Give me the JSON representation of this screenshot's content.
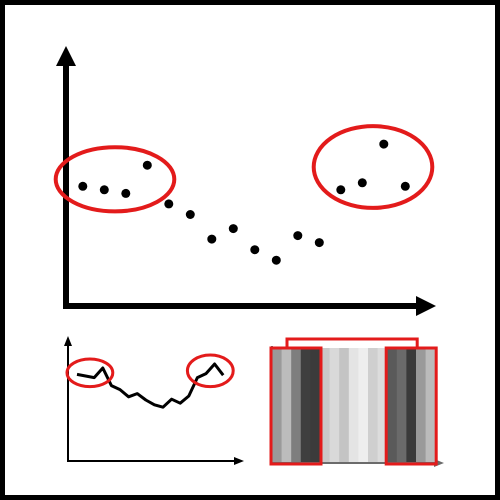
{
  "figure": {
    "border_color": "#000000",
    "axis_color": "#000000",
    "highlight_color": "#e31b1b",
    "axis_arrow_color_secondary": "#6b6b6b"
  },
  "scatter_panel": {
    "points": [
      {
        "x": 0.5,
        "y": 6.8
      },
      {
        "x": 1.5,
        "y": 6.6
      },
      {
        "x": 2.5,
        "y": 6.4
      },
      {
        "x": 3.5,
        "y": 8.0
      },
      {
        "x": 4.5,
        "y": 5.8
      },
      {
        "x": 5.5,
        "y": 5.2
      },
      {
        "x": 6.5,
        "y": 3.8
      },
      {
        "x": 7.5,
        "y": 4.4
      },
      {
        "x": 8.5,
        "y": 3.2
      },
      {
        "x": 9.5,
        "y": 2.6
      },
      {
        "x": 10.5,
        "y": 4.0
      },
      {
        "x": 11.5,
        "y": 3.6
      },
      {
        "x": 12.5,
        "y": 6.6
      },
      {
        "x": 13.5,
        "y": 7.0
      },
      {
        "x": 14.5,
        "y": 9.2
      },
      {
        "x": 15.5,
        "y": 6.8
      }
    ],
    "highlighted_groups": [
      {
        "points": [
          0,
          1,
          2,
          3
        ]
      },
      {
        "points": [
          12,
          13,
          14,
          15
        ]
      }
    ]
  },
  "line_panel": {
    "values": [
      3.2,
      3.0,
      2.8,
      4.0,
      1.8,
      1.3,
      0.4,
      0.8,
      0.0,
      -0.6,
      -0.9,
      0.1,
      -0.4,
      0.5,
      2.8,
      3.3,
      4.5,
      3.1
    ],
    "highlighted_ranges": [
      [
        0,
        3
      ],
      [
        14,
        17
      ]
    ]
  },
  "strip_panel": {
    "stripe_shades": [
      "#9a9a9a",
      "#bcbcbc",
      "#7e7e7e",
      "#3f3f3f",
      "#3b3b3b",
      "#c9c9c9",
      "#d9d9d9",
      "#c4c4c4",
      "#e4e4e4",
      "#eeeeee",
      "#cfcfcf",
      "#dcdcdc",
      "#5a5a5a",
      "#6a6a6a",
      "#3a3a3a",
      "#9a9a9a",
      "#bbbbbb"
    ],
    "highlighted_ranges": [
      [
        0,
        4
      ],
      [
        12,
        16
      ]
    ],
    "bracket": true
  }
}
